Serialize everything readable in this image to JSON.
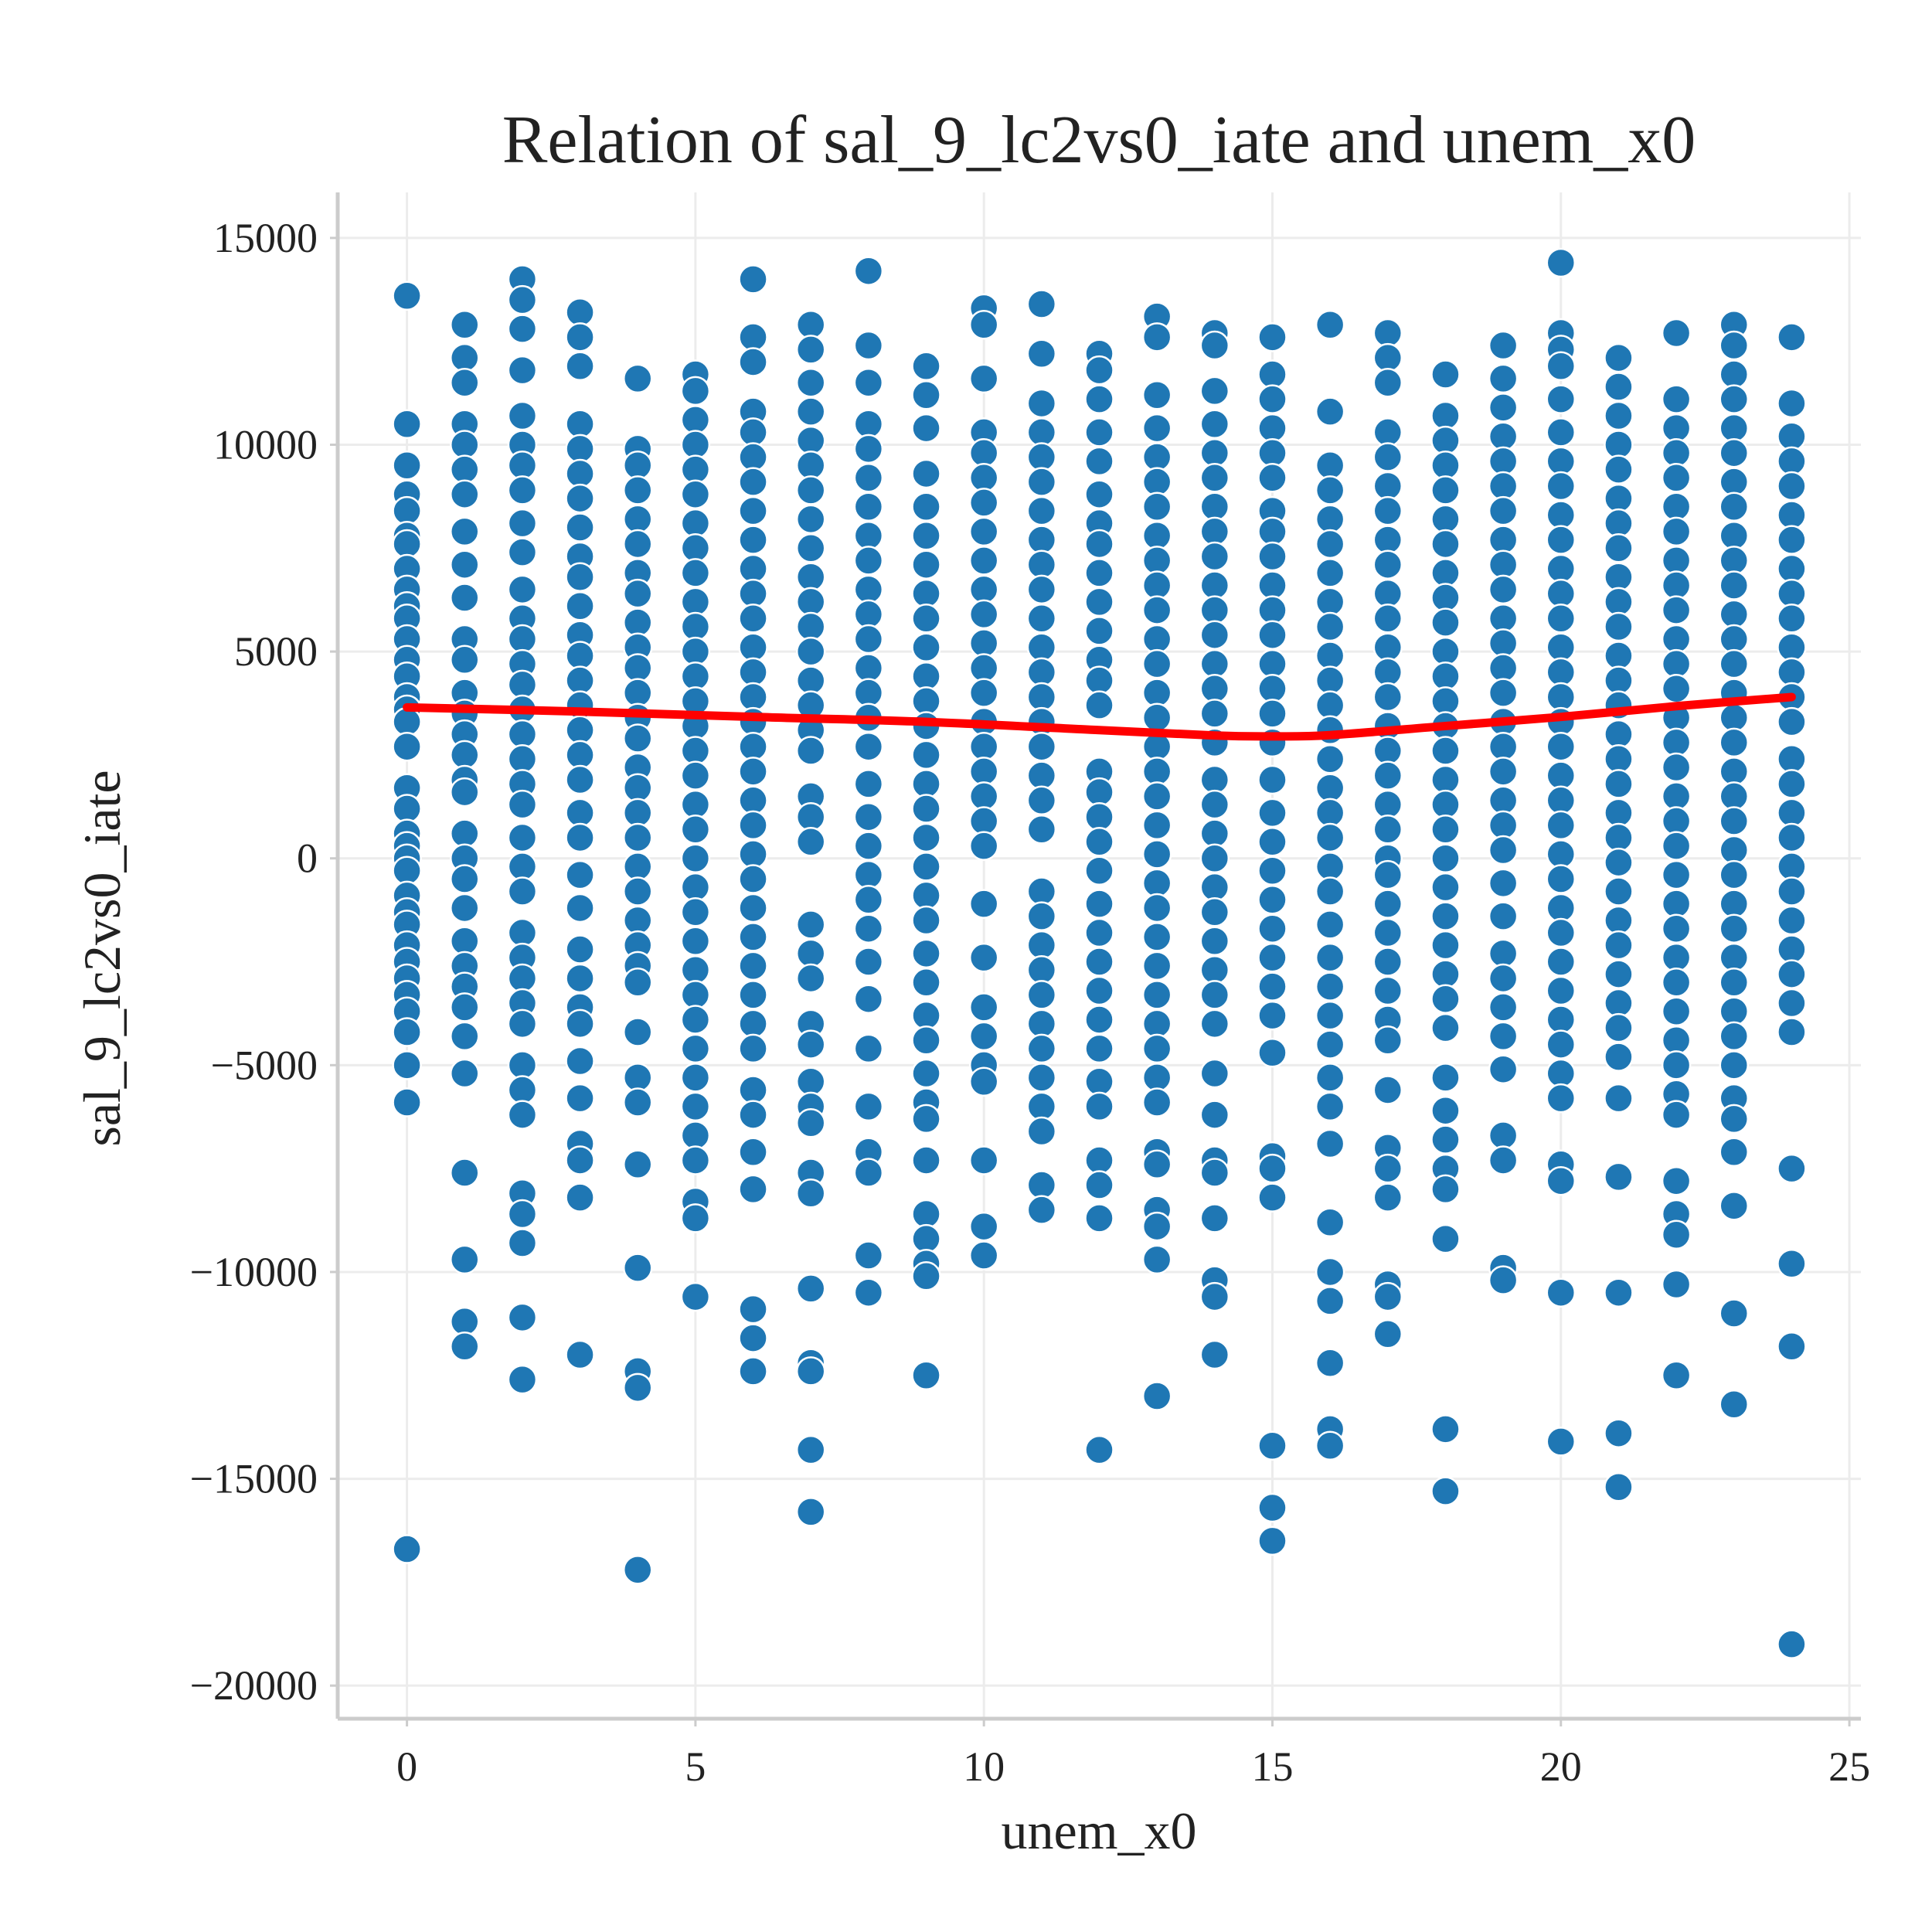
{
  "chart_data": {
    "type": "scatter",
    "title": "Relation of sal_9_lc2vs0_iate and unem_x0",
    "xlabel": "unem_x0",
    "ylabel": "sal_9_lc2vs0_iate",
    "xlim": [
      -1.2,
      25.2
    ],
    "ylim": [
      -20800,
      16100
    ],
    "x_ticks": [
      0,
      5,
      10,
      15,
      20,
      25
    ],
    "x_tick_labels": [
      "0",
      "5",
      "10",
      "15",
      "20",
      "25"
    ],
    "y_ticks": [
      15000,
      10000,
      5000,
      0,
      -5000,
      -10000,
      -15000,
      -20000
    ],
    "y_tick_labels": [
      "15000",
      "10000",
      "5000",
      "0",
      "−5000",
      "−10000",
      "−15000",
      "−20000"
    ],
    "grid": true,
    "point_color": "#1f77b4",
    "fit_color": "#ff0000",
    "fit_line": {
      "x": [
        0,
        3,
        6,
        9,
        12,
        14,
        15,
        16,
        18,
        20,
        22,
        24
      ],
      "y": [
        3650,
        3550,
        3420,
        3300,
        3100,
        2970,
        2950,
        2980,
        3200,
        3420,
        3680,
        3900
      ]
    },
    "series": [
      {
        "x": 0,
        "y": [
          13600,
          10500,
          9500,
          8800,
          8400,
          7800,
          7600,
          7000,
          6500,
          6100,
          5800,
          5300,
          4800,
          4400,
          3900,
          3600,
          3300,
          2700,
          1700,
          1200,
          600,
          300,
          0,
          -300,
          -900,
          -1300,
          -1600,
          -2100,
          -2500,
          -2900,
          -3300,
          -3700,
          -4200,
          -5000,
          -5900,
          -16700
        ]
      },
      {
        "x": 1,
        "y": [
          12900,
          12100,
          11500,
          10500,
          10000,
          9400,
          8800,
          7900,
          7100,
          6300,
          5300,
          4800,
          4000,
          3500,
          3000,
          2500,
          1900,
          1600,
          600,
          0,
          -500,
          -1200,
          -2000,
          -2600,
          -3100,
          -3600,
          -4300,
          -5200,
          -7600,
          -9700,
          -11200,
          -11800
        ]
      },
      {
        "x": 2,
        "y": [
          14000,
          13500,
          12800,
          11800,
          10700,
          10000,
          9500,
          8900,
          8100,
          7400,
          6500,
          5800,
          5300,
          4700,
          4200,
          3600,
          3000,
          2400,
          1800,
          1300,
          500,
          -200,
          -800,
          -1800,
          -2400,
          -2900,
          -3500,
          -4000,
          -5000,
          -5600,
          -6200,
          -8100,
          -8600,
          -9300,
          -11100,
          -12600
        ]
      },
      {
        "x": 3,
        "y": [
          13200,
          12600,
          11900,
          10500,
          9900,
          9300,
          8700,
          8000,
          7300,
          6800,
          6100,
          5400,
          4900,
          4300,
          3700,
          3100,
          2500,
          1900,
          1100,
          500,
          -400,
          -1200,
          -2200,
          -2900,
          -3600,
          -4000,
          -4900,
          -5800,
          -6900,
          -7300,
          -8200,
          -12000
        ]
      },
      {
        "x": 4,
        "y": [
          11600,
          9900,
          9500,
          8900,
          8200,
          7600,
          6900,
          6400,
          5700,
          5100,
          4600,
          4000,
          3400,
          2900,
          2200,
          1700,
          1100,
          500,
          -200,
          -800,
          -1500,
          -2100,
          -2600,
          -3000,
          -4200,
          -5300,
          -5900,
          -7400,
          -9900,
          -12400,
          -12800,
          -17200
        ]
      },
      {
        "x": 5,
        "y": [
          11700,
          11300,
          10600,
          10000,
          9400,
          8800,
          8100,
          7500,
          6900,
          6200,
          5600,
          5000,
          4400,
          3800,
          3200,
          2600,
          2000,
          1300,
          700,
          0,
          -700,
          -1300,
          -2000,
          -2700,
          -3300,
          -3900,
          -4600,
          -5300,
          -6000,
          -6700,
          -7300,
          -8300,
          -8700,
          -10600
        ]
      },
      {
        "x": 6,
        "y": [
          14000,
          12600,
          12000,
          10800,
          10300,
          9700,
          9100,
          8400,
          7700,
          7000,
          6400,
          5800,
          5100,
          4500,
          3900,
          3300,
          2700,
          2100,
          1400,
          800,
          100,
          -500,
          -1200,
          -1900,
          -2600,
          -3300,
          -4000,
          -4600,
          -5600,
          -6200,
          -7100,
          -8000,
          -10900,
          -11600,
          -12400
        ]
      },
      {
        "x": 7,
        "y": [
          12900,
          12300,
          11500,
          10800,
          10100,
          9500,
          8900,
          8200,
          7500,
          6800,
          6200,
          5600,
          5000,
          4300,
          3700,
          3100,
          2600,
          1500,
          1000,
          400,
          -1600,
          -2300,
          -2900,
          -4000,
          -4500,
          -5400,
          -6000,
          -6400,
          -7600,
          -8100,
          -10400,
          -12200,
          -12400,
          -14300,
          -15800
        ]
      },
      {
        "x": 8,
        "y": [
          14200,
          12400,
          11500,
          10500,
          9900,
          9200,
          8500,
          7800,
          7200,
          6500,
          5900,
          5300,
          4600,
          4000,
          3400,
          2700,
          1800,
          1000,
          300,
          -400,
          -1000,
          -1700,
          -2500,
          -3400,
          -4600,
          -6000,
          -7100,
          -7600,
          -9600,
          -10500
        ]
      },
      {
        "x": 9,
        "y": [
          11900,
          11200,
          10400,
          9300,
          8500,
          7800,
          7100,
          6400,
          5800,
          5100,
          4400,
          3800,
          3200,
          2500,
          1800,
          1200,
          500,
          -200,
          -900,
          -1500,
          -2300,
          -3000,
          -3800,
          -4400,
          -5200,
          -5900,
          -6300,
          -7300,
          -8600,
          -9200,
          -9800,
          -10100,
          -12500
        ]
      },
      {
        "x": 10,
        "y": [
          13300,
          12900,
          11600,
          10300,
          9800,
          9200,
          8600,
          7900,
          7200,
          6500,
          5900,
          5200,
          4600,
          4000,
          3300,
          2700,
          2100,
          1500,
          900,
          300,
          -1100,
          -2400,
          -3600,
          -4300,
          -5000,
          -5400,
          -7300,
          -8900,
          -9600
        ]
      },
      {
        "x": 11,
        "y": [
          13400,
          12200,
          11000,
          10300,
          9700,
          9100,
          8400,
          7700,
          7100,
          6500,
          5800,
          5100,
          4500,
          3900,
          3300,
          2700,
          2000,
          1400,
          700,
          -800,
          -1400,
          -2100,
          -2700,
          -3300,
          -4000,
          -4600,
          -5300,
          -6000,
          -6600,
          -7900,
          -8500
        ]
      },
      {
        "x": 12,
        "y": [
          12200,
          11800,
          11100,
          10300,
          9600,
          8800,
          8100,
          7600,
          6900,
          6200,
          5500,
          4800,
          4300,
          3700,
          2100,
          1600,
          1000,
          400,
          -300,
          -1100,
          -1800,
          -2500,
          -3200,
          -3900,
          -4600,
          -5400,
          -6000,
          -7300,
          -7900,
          -8700,
          -14300
        ]
      },
      {
        "x": 13,
        "y": [
          13100,
          12600,
          11200,
          10400,
          9700,
          9100,
          8500,
          7800,
          7200,
          6600,
          6000,
          5300,
          4700,
          4000,
          3400,
          2700,
          2100,
          1500,
          800,
          100,
          -600,
          -1200,
          -1900,
          -2600,
          -3300,
          -4000,
          -4600,
          -5300,
          -5900,
          -7100,
          -7400,
          -8500,
          -8900,
          -9700,
          -13000
        ]
      },
      {
        "x": 14,
        "y": [
          12700,
          12400,
          11300,
          10500,
          9800,
          9200,
          8500,
          7900,
          7300,
          6600,
          6000,
          5400,
          4700,
          4100,
          3500,
          2800,
          1900,
          1300,
          600,
          0,
          -700,
          -1300,
          -2000,
          -2700,
          -3300,
          -4000,
          -5200,
          -6200,
          -7300,
          -7600,
          -8700,
          -10200,
          -10600,
          -12000
        ]
      },
      {
        "x": 15,
        "y": [
          12600,
          11700,
          11100,
          10400,
          9800,
          9200,
          8400,
          7900,
          7300,
          6600,
          6000,
          5400,
          4700,
          4100,
          3500,
          2800,
          1900,
          1100,
          400,
          -300,
          -1000,
          -1700,
          -2400,
          -3100,
          -3800,
          -4700,
          -7200,
          -7500,
          -8200,
          -14200,
          -15700,
          -16500
        ]
      },
      {
        "x": 16,
        "y": [
          12900,
          10800,
          9500,
          8900,
          8200,
          7600,
          6900,
          6200,
          5600,
          4900,
          4300,
          3700,
          3100,
          2400,
          1700,
          1100,
          500,
          -200,
          -800,
          -1600,
          -2400,
          -3100,
          -3800,
          -4500,
          -5300,
          -6000,
          -6900,
          -8800,
          -10000,
          -10700,
          -12200,
          -13800,
          -14200
        ]
      },
      {
        "x": 17,
        "y": [
          12700,
          12100,
          11500,
          10300,
          9700,
          9000,
          8400,
          7700,
          7100,
          6400,
          5800,
          5100,
          4500,
          3900,
          3200,
          2600,
          2000,
          1300,
          700,
          0,
          -400,
          -1100,
          -1800,
          -2500,
          -3200,
          -3900,
          -4400,
          -5600,
          -7000,
          -7500,
          -8200,
          -10300,
          -10600,
          -11500
        ]
      },
      {
        "x": 18,
        "y": [
          11700,
          10700,
          10100,
          9500,
          8900,
          8200,
          7600,
          6900,
          6300,
          5700,
          5000,
          4400,
          3800,
          3200,
          2600,
          1900,
          1300,
          700,
          0,
          -700,
          -1400,
          -2100,
          -2800,
          -3400,
          -4100,
          -5300,
          -6100,
          -6800,
          -7500,
          -8000,
          -9200,
          -13800,
          -15300
        ]
      },
      {
        "x": 19,
        "y": [
          12400,
          11600,
          10900,
          10200,
          9600,
          9000,
          8400,
          7700,
          7100,
          6500,
          5800,
          5200,
          4600,
          4000,
          3300,
          2700,
          2100,
          1400,
          800,
          200,
          -600,
          -1400,
          -2300,
          -2900,
          -3600,
          -4300,
          -5100,
          -6700,
          -7300,
          -9900,
          -10200
        ]
      },
      {
        "x": 20,
        "y": [
          14400,
          12700,
          12300,
          11900,
          11100,
          10300,
          9600,
          9000,
          8300,
          7700,
          7000,
          6400,
          5800,
          5100,
          4500,
          3900,
          3300,
          2700,
          2000,
          1400,
          800,
          100,
          -500,
          -1200,
          -1800,
          -2500,
          -3200,
          -3900,
          -4500,
          -5200,
          -5800,
          -7400,
          -7800,
          -10500,
          -14100
        ]
      },
      {
        "x": 21,
        "y": [
          12100,
          11400,
          10700,
          10000,
          9400,
          8700,
          8100,
          7500,
          6800,
          6200,
          5600,
          4900,
          4300,
          3700,
          3000,
          2400,
          1800,
          1100,
          500,
          -100,
          -800,
          -1500,
          -2100,
          -2800,
          -3500,
          -4100,
          -4800,
          -5800,
          -7700,
          -10500,
          -13900,
          -15200
        ]
      },
      {
        "x": 22,
        "y": [
          12700,
          11100,
          10400,
          9800,
          9200,
          8500,
          7900,
          7200,
          6600,
          6000,
          5300,
          4700,
          4100,
          3400,
          2800,
          2200,
          1500,
          900,
          300,
          -400,
          -1100,
          -1700,
          -2400,
          -3000,
          -3700,
          -4400,
          -5000,
          -5700,
          -6200,
          -7800,
          -8600,
          -9100,
          -10300,
          -12500
        ]
      },
      {
        "x": 23,
        "y": [
          12900,
          12400,
          11700,
          11100,
          10400,
          9800,
          9100,
          8500,
          7800,
          7200,
          6600,
          5900,
          5300,
          4700,
          4000,
          3400,
          2800,
          2100,
          1500,
          900,
          200,
          -400,
          -1100,
          -1700,
          -2400,
          -3000,
          -3700,
          -4300,
          -5000,
          -5800,
          -6300,
          -7100,
          -8400,
          -11000,
          -13200
        ]
      },
      {
        "x": 24,
        "y": [
          12600,
          11000,
          10200,
          9600,
          9000,
          8300,
          7700,
          7000,
          6400,
          5800,
          5100,
          4500,
          3900,
          3300,
          2400,
          1800,
          1100,
          500,
          -200,
          -800,
          -1500,
          -2200,
          -2800,
          -3500,
          -4200,
          -7500,
          -9800,
          -11800,
          -19000
        ]
      }
    ]
  }
}
